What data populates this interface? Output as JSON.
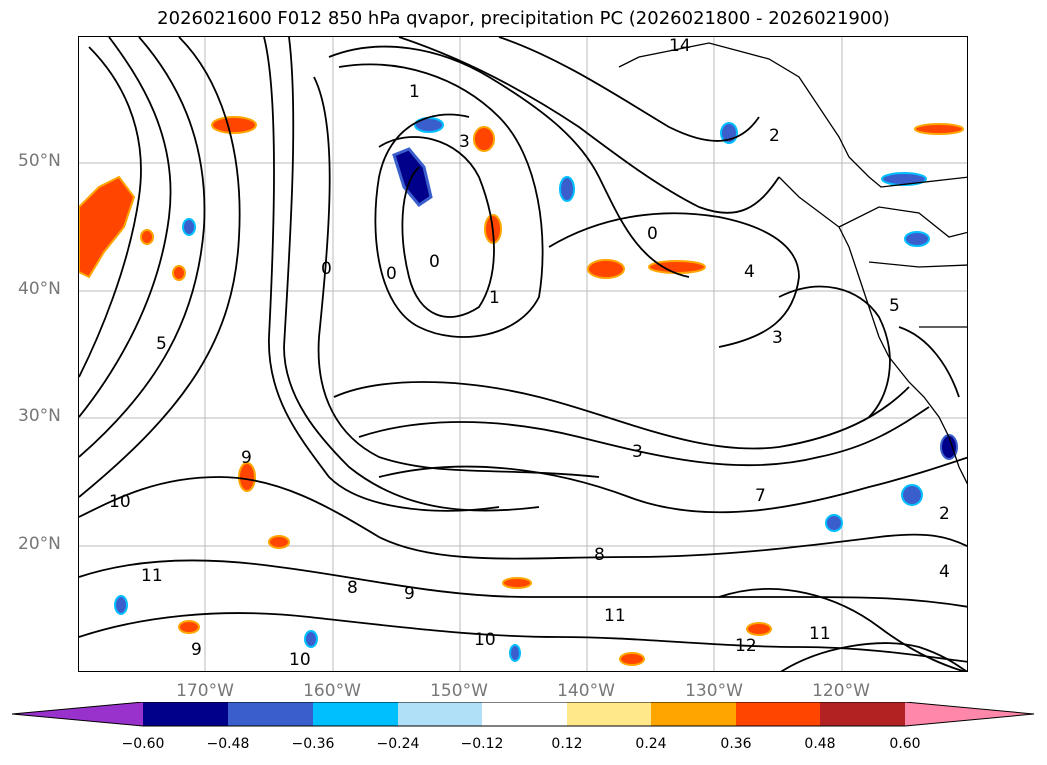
{
  "title": "2026021600 F012 850 hPa qvapor, precipitation PC (2026021800 - 2026021900)",
  "map": {
    "lat_labels": [
      "50°N",
      "40°N",
      "30°N",
      "20°N"
    ],
    "lon_labels": [
      "170°W",
      "160°W",
      "150°W",
      "140°W",
      "130°W",
      "120°W"
    ],
    "contour_labels": [
      "0",
      "0",
      "0",
      "0",
      "1",
      "1",
      "2",
      "2",
      "3",
      "3",
      "3",
      "4",
      "4",
      "5",
      "5",
      "7",
      "8",
      "8",
      "9",
      "9",
      "9",
      "10",
      "10",
      "10",
      "11",
      "11",
      "11",
      "12",
      "14"
    ],
    "colors": {
      "land": "#000000",
      "grid": "#bbbbbb",
      "contour": "#000000"
    }
  },
  "colorbar": {
    "ticks": [
      "−0.60",
      "−0.48",
      "−0.36",
      "−0.24",
      "−0.12",
      "0.12",
      "0.24",
      "0.36",
      "0.48",
      "0.60"
    ],
    "colors": [
      "#9932cc",
      "#00008b",
      "#3a5fcd",
      "#00bfff",
      "#b0e0f8",
      "#ffffff",
      "#ffe88a",
      "#ffa500",
      "#ff4500",
      "#b22222",
      "#ff88aa"
    ]
  }
}
